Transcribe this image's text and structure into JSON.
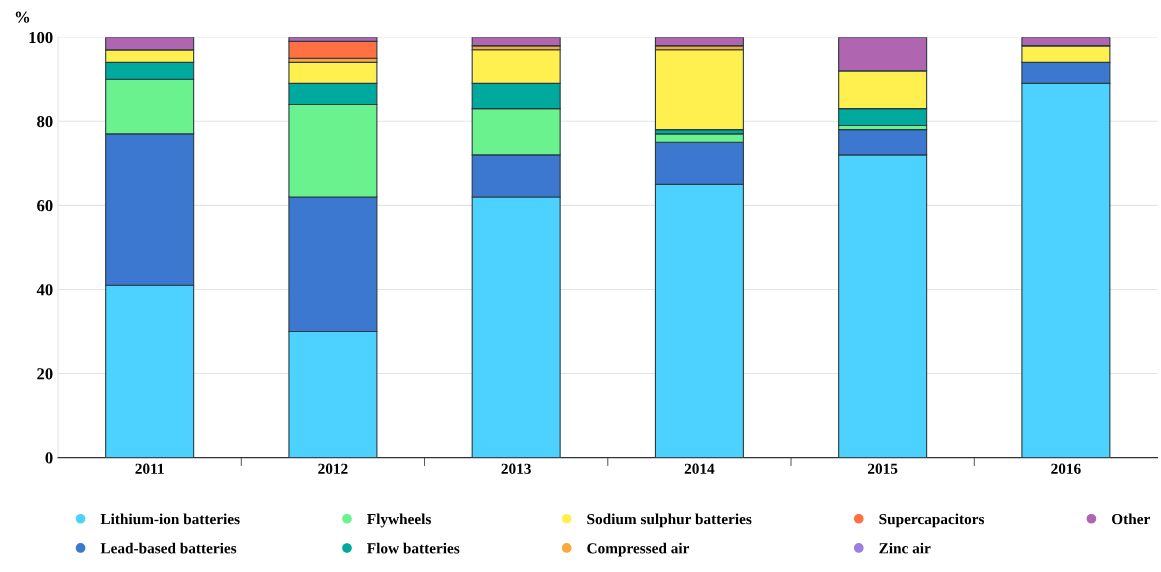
{
  "chart_data": {
    "type": "bar",
    "stacked": true,
    "ylabel": "%",
    "categories": [
      "2011",
      "2012",
      "2013",
      "2014",
      "2015",
      "2016"
    ],
    "series": [
      {
        "name": "Lithium-ion batteries",
        "color": "#4dd2ff",
        "values": [
          41,
          30,
          62,
          65,
          72,
          89
        ]
      },
      {
        "name": "Lead-based batteries",
        "color": "#3c78d0",
        "values": [
          36,
          32,
          10,
          10,
          6,
          5
        ]
      },
      {
        "name": "Flywheels",
        "color": "#6af28e",
        "values": [
          13,
          22,
          11,
          2,
          1,
          0
        ]
      },
      {
        "name": "Flow batteries",
        "color": "#00a99d",
        "values": [
          4,
          5,
          6,
          1,
          4,
          0
        ]
      },
      {
        "name": "Sodium sulphur batteries",
        "color": "#fff050",
        "values": [
          3,
          5,
          8,
          19,
          9,
          4
        ]
      },
      {
        "name": "Compressed air",
        "color": "#f9a93c",
        "values": [
          0,
          1,
          1,
          1,
          0,
          0
        ]
      },
      {
        "name": "Supercapacitors",
        "color": "#ff7043",
        "values": [
          0,
          4,
          0,
          0,
          0,
          0
        ]
      },
      {
        "name": "Zinc air",
        "color": "#9a7ee0",
        "values": [
          0,
          0,
          0,
          0,
          0,
          0
        ]
      },
      {
        "name": "Other",
        "color": "#b065b0",
        "values": [
          3,
          1,
          2,
          2,
          8,
          2
        ]
      }
    ],
    "ylim": [
      0,
      100
    ],
    "yticks": [
      0,
      20,
      40,
      60,
      80,
      100
    ],
    "grid": "y",
    "legend": "bottom",
    "marker": "circle"
  }
}
